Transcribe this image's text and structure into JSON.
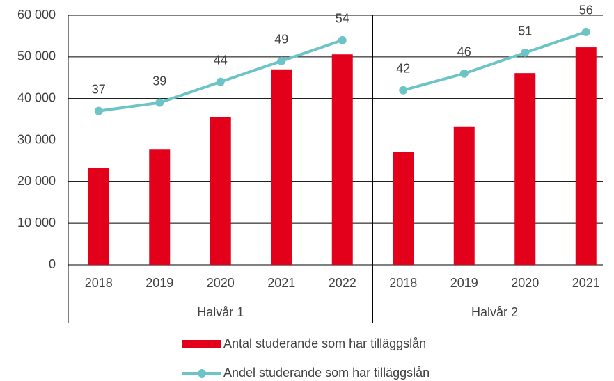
{
  "chart_data": {
    "type": "bar-line",
    "groups": [
      {
        "name": "Halvår 1",
        "categories": [
          "2018",
          "2019",
          "2020",
          "2021",
          "2022"
        ]
      },
      {
        "name": "Halvår 2",
        "categories": [
          "2018",
          "2019",
          "2020",
          "2021"
        ]
      }
    ],
    "series": [
      {
        "name": "Antal studerande som har tilläggslån",
        "type": "bar",
        "color": "#e2001a",
        "values": [
          23400,
          27700,
          35600,
          47000,
          50600,
          27100,
          33300,
          46100,
          52300
        ]
      },
      {
        "name": "Andel studerande som har tilläggslån",
        "type": "line",
        "axis": "y2",
        "color": "#6cc4c6",
        "values": [
          37,
          39,
          44,
          49,
          54,
          42,
          46,
          51,
          56
        ]
      }
    ],
    "ylim": [
      0,
      60000
    ],
    "yticks": [
      {
        "value": 0,
        "label": "0"
      },
      {
        "value": 10000,
        "label": "10 000"
      },
      {
        "value": 20000,
        "label": "20 000"
      },
      {
        "value": 30000,
        "label": "30 000"
      },
      {
        "value": 40000,
        "label": "40 000"
      },
      {
        "value": 50000,
        "label": "50 000"
      },
      {
        "value": 60000,
        "label": "60 000"
      }
    ],
    "y2lim": [
      0,
      60
    ],
    "grid": true
  }
}
